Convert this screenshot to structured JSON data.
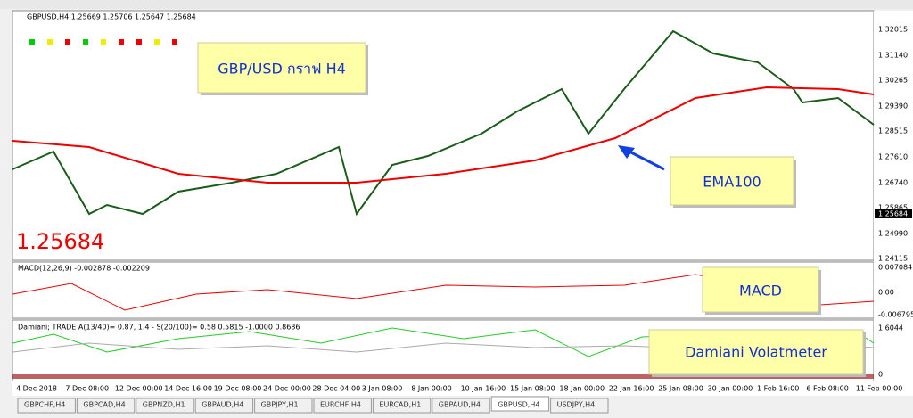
{
  "header": {
    "title": "GBPUSD,H4  1.25669 1.25706 1.25647 1.25684"
  },
  "price_axis": {
    "labels": [
      "1.32015",
      "1.31140",
      "1.30265",
      "1.29390",
      "1.28515",
      "1.27610",
      "1.26740",
      "1.25865",
      "1.24990",
      "1.24115"
    ],
    "current": "1.25684"
  },
  "annotations": {
    "big_price": "1.25684",
    "title_note": "GBP/USD กราฟ H4",
    "ema_note": "EMA100",
    "macd_note": "MACD",
    "damiani_note": "Damiani Volatmeter"
  },
  "macd": {
    "label": "MACD(12,26,9) -0.002878 -0.002209",
    "axis": [
      "0.007084",
      "0.00",
      "-0.006795"
    ]
  },
  "damiani": {
    "label": "Damiani; TRADE  A(13/40)= 0.87, 1.4 - S(20/100)= 0.58  0.5815 -1.0000 0.8686",
    "axis": [
      "1.6044",
      "0"
    ]
  },
  "time_axis": [
    "4 Dec 2018",
    "7 Dec 08:00",
    "12 Dec 00:00",
    "14 Dec 16:00",
    "19 Dec 08:00",
    "24 Dec 00:00",
    "28 Dec 04:00",
    "3 Jan 08:00",
    "8 Jan 00:00",
    "10 Jan 16:00",
    "15 Jan 08:00",
    "18 Jan 00:00",
    "22 Jan 16:00",
    "25 Jan 08:00",
    "30 Jan 00:00",
    "1 Feb 16:00",
    "6 Feb 08:00",
    "11 Feb 00:00"
  ],
  "tabs": [
    "GBPCHF,H4",
    "GBPCAD,H4",
    "GBPNZD,H1",
    "GBPAUD,H4",
    "GBPJPY,H1",
    "EURCHF,H4",
    "EURCAD,H1",
    "GBPAUD,H4",
    "GBPUSD,H4",
    "USDJPY,H4"
  ]
}
